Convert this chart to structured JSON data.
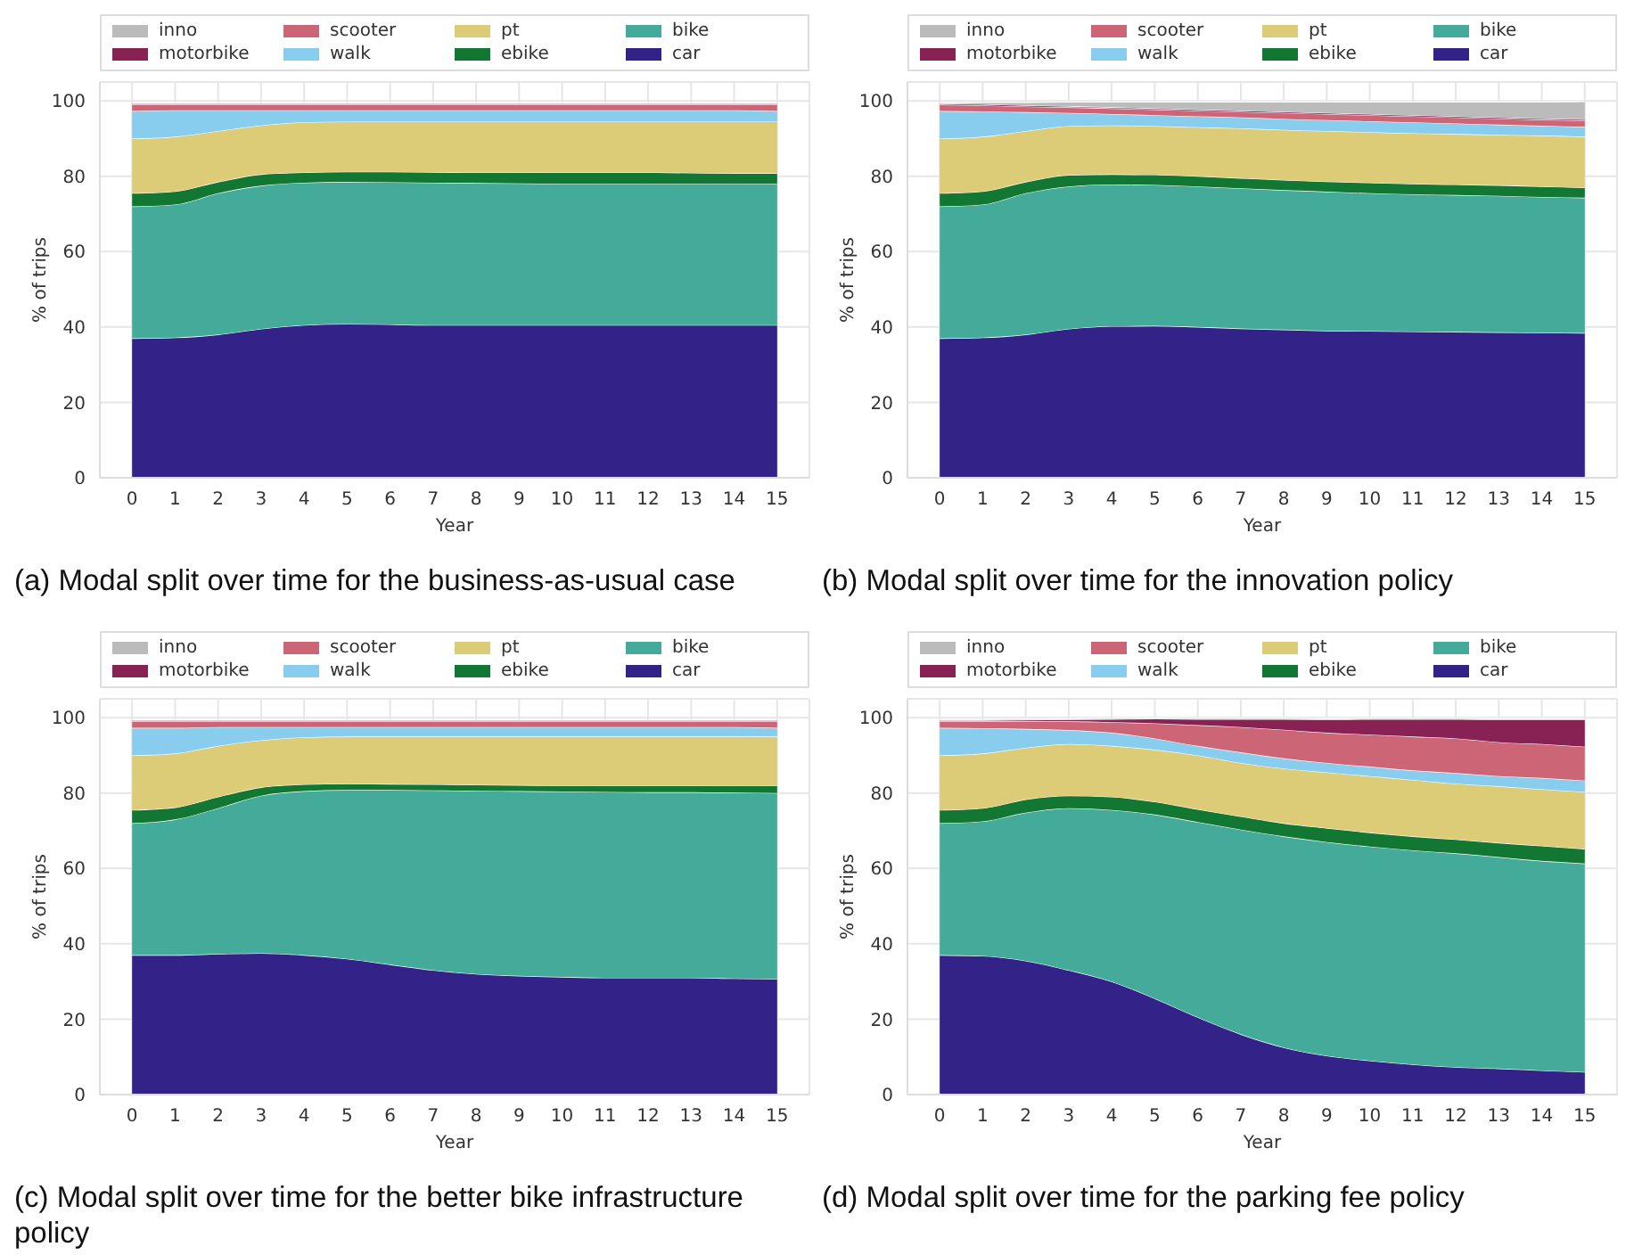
{
  "chart_data": [
    {
      "type": "area",
      "stacked": true,
      "title": "(a) Modal split over time for the business-as-usual case",
      "xlabel": "Year",
      "ylabel": "% of trips",
      "x": [
        0,
        1,
        2,
        3,
        4,
        5,
        6,
        7,
        8,
        9,
        10,
        11,
        12,
        13,
        14,
        15
      ],
      "xlim": [
        -0.75,
        15.75
      ],
      "xticks": [
        0,
        1,
        2,
        3,
        4,
        5,
        6,
        7,
        8,
        9,
        10,
        11,
        12,
        13,
        14,
        15
      ],
      "ylim": [
        0,
        105
      ],
      "yticks": [
        0,
        20,
        40,
        60,
        80,
        100
      ],
      "grid": true,
      "legend": "top",
      "series": [
        {
          "name": "car",
          "color": "#332288",
          "values": [
            37,
            37.2,
            38,
            39.5,
            40.5,
            40.8,
            40.7,
            40.5,
            40.5,
            40.5,
            40.5,
            40.5,
            40.5,
            40.5,
            40.5,
            40.5
          ]
        },
        {
          "name": "bike",
          "color": "#44aa99",
          "values": [
            35,
            35.3,
            37.5,
            38,
            37.8,
            37.7,
            37.7,
            37.8,
            37.7,
            37.6,
            37.5,
            37.5,
            37.5,
            37.5,
            37.5,
            37.5
          ]
        },
        {
          "name": "ebike",
          "color": "#117733",
          "values": [
            3.5,
            3.5,
            3,
            3,
            2.7,
            2.7,
            2.8,
            2.8,
            2.8,
            2.9,
            3,
            3,
            3,
            2.9,
            2.8,
            2.8
          ]
        },
        {
          "name": "pt",
          "color": "#ddcc77",
          "values": [
            14.5,
            14.5,
            13.5,
            13,
            13.3,
            13.3,
            13.3,
            13.4,
            13.5,
            13.5,
            13.5,
            13.5,
            13.5,
            13.6,
            13.7,
            13.7
          ]
        },
        {
          "name": "walk",
          "color": "#88ccee",
          "values": [
            7.3,
            7,
            5.5,
            4,
            3.2,
            3,
            3,
            3,
            3,
            3,
            3,
            3,
            3,
            3,
            3,
            2.8
          ]
        },
        {
          "name": "scooter",
          "color": "#cc6677",
          "values": [
            1.7,
            1.5,
            1.5,
            1.5,
            1.5,
            1.5,
            1.5,
            1.5,
            1.5,
            1.5,
            1.5,
            1.5,
            1.5,
            1.5,
            1.5,
            1.7
          ]
        },
        {
          "name": "motorbike",
          "color": "#882255",
          "values": [
            0.3,
            0.3,
            0.3,
            0.3,
            0.3,
            0.3,
            0.3,
            0.3,
            0.3,
            0.3,
            0.3,
            0.3,
            0.3,
            0.3,
            0.3,
            0.3
          ]
        },
        {
          "name": "inno",
          "color": "#bbbbbb",
          "values": [
            null,
            null,
            null,
            null,
            null,
            null,
            null,
            null,
            null,
            null,
            null,
            null,
            null,
            null,
            null,
            null
          ]
        }
      ]
    },
    {
      "type": "area",
      "stacked": true,
      "title": "(b) Modal split over time for the innovation policy",
      "xlabel": "Year",
      "ylabel": "% of trips",
      "x": [
        0,
        1,
        2,
        3,
        4,
        5,
        6,
        7,
        8,
        9,
        10,
        11,
        12,
        13,
        14,
        15
      ],
      "xlim": [
        -0.75,
        15.75
      ],
      "xticks": [
        0,
        1,
        2,
        3,
        4,
        5,
        6,
        7,
        8,
        9,
        10,
        11,
        12,
        13,
        14,
        15
      ],
      "ylim": [
        0,
        105
      ],
      "yticks": [
        0,
        20,
        40,
        60,
        80,
        100
      ],
      "grid": true,
      "legend": "top",
      "series": [
        {
          "name": "car",
          "color": "#332288",
          "values": [
            37,
            37.2,
            38,
            39.5,
            40.2,
            40.3,
            40,
            39.6,
            39.3,
            39,
            38.9,
            38.8,
            38.7,
            38.6,
            38.5,
            38.4
          ]
        },
        {
          "name": "bike",
          "color": "#44aa99",
          "values": [
            35,
            35.3,
            37.5,
            37.8,
            37.6,
            37.4,
            37.3,
            37.2,
            37,
            36.9,
            36.6,
            36.4,
            36.3,
            36.2,
            36,
            35.9
          ]
        },
        {
          "name": "ebike",
          "color": "#117733",
          "values": [
            3.5,
            3.5,
            3,
            3,
            2.7,
            2.7,
            2.7,
            2.7,
            2.7,
            2.7,
            2.8,
            2.8,
            2.8,
            2.8,
            2.8,
            2.7
          ]
        },
        {
          "name": "pt",
          "color": "#ddcc77",
          "values": [
            14.5,
            14.5,
            13.5,
            13,
            13,
            12.9,
            13,
            13.2,
            13.3,
            13.4,
            13.4,
            13.4,
            13.4,
            13.4,
            13.5,
            13.5
          ]
        },
        {
          "name": "walk",
          "color": "#88ccee",
          "values": [
            7.3,
            6.7,
            5,
            3.5,
            3,
            2.9,
            2.9,
            2.9,
            2.9,
            2.9,
            2.9,
            2.9,
            2.8,
            2.7,
            2.6,
            2.6
          ]
        },
        {
          "name": "scooter",
          "color": "#cc6677",
          "values": [
            1.7,
            1.6,
            1.5,
            1.5,
            1.5,
            1.5,
            1.5,
            1.5,
            1.6,
            1.6,
            1.6,
            1.6,
            1.6,
            1.6,
            1.6,
            1.7
          ]
        },
        {
          "name": "motorbike",
          "color": "#882255",
          "values": [
            0.3,
            0.3,
            0.3,
            0.3,
            0.3,
            0.3,
            0.3,
            0.3,
            0.3,
            0.3,
            0.3,
            0.3,
            0.3,
            0.3,
            0.3,
            0.3
          ]
        },
        {
          "name": "inno",
          "color": "#bbbbbb",
          "values": [
            0.2,
            0.5,
            0.8,
            1.1,
            1.4,
            1.7,
            2,
            2.3,
            2.6,
            2.9,
            3.2,
            3.5,
            3.8,
            4.1,
            4.4,
            4.7
          ]
        }
      ]
    },
    {
      "type": "area",
      "stacked": true,
      "title": "(c) Modal split over time for the better bike infrastructure policy",
      "xlabel": "Year",
      "ylabel": "% of trips",
      "x": [
        0,
        1,
        2,
        3,
        4,
        5,
        6,
        7,
        8,
        9,
        10,
        11,
        12,
        13,
        14,
        15
      ],
      "xlim": [
        -0.75,
        15.75
      ],
      "xticks": [
        0,
        1,
        2,
        3,
        4,
        5,
        6,
        7,
        8,
        9,
        10,
        11,
        12,
        13,
        14,
        15
      ],
      "ylim": [
        0,
        105
      ],
      "yticks": [
        0,
        20,
        40,
        60,
        80,
        100
      ],
      "grid": true,
      "legend": "top",
      "series": [
        {
          "name": "car",
          "color": "#332288",
          "values": [
            37,
            37,
            37.3,
            37.5,
            37,
            36,
            34.5,
            33,
            32,
            31.5,
            31.2,
            31,
            31,
            31,
            30.8,
            30.7
          ]
        },
        {
          "name": "bike",
          "color": "#44aa99",
          "values": [
            35,
            36,
            38.7,
            41.8,
            43.5,
            44.8,
            46.3,
            47.7,
            48.6,
            49,
            49.2,
            49.3,
            49.2,
            49.2,
            49.3,
            49.3
          ]
        },
        {
          "name": "ebike",
          "color": "#117733",
          "values": [
            3.5,
            3.2,
            3,
            2.2,
            1.8,
            1.7,
            1.6,
            1.6,
            1.6,
            1.6,
            1.6,
            1.7,
            1.8,
            1.8,
            1.9,
            2
          ]
        },
        {
          "name": "pt",
          "color": "#ddcc77",
          "values": [
            14.5,
            14.3,
            13.5,
            12.5,
            12.5,
            12.5,
            12.6,
            12.7,
            12.8,
            12.9,
            13,
            13,
            13,
            13,
            13,
            13
          ]
        },
        {
          "name": "walk",
          "color": "#88ccee",
          "values": [
            7.3,
            6.8,
            5,
            3.5,
            2.7,
            2.5,
            2.5,
            2.5,
            2.5,
            2.5,
            2.5,
            2.5,
            2.5,
            2.5,
            2.5,
            2.3
          ]
        },
        {
          "name": "scooter",
          "color": "#cc6677",
          "values": [
            1.7,
            1.7,
            1.5,
            1.5,
            1.5,
            1.5,
            1.5,
            1.5,
            1.5,
            1.5,
            1.5,
            1.5,
            1.5,
            1.5,
            1.5,
            1.7
          ]
        },
        {
          "name": "motorbike",
          "color": "#882255",
          "values": [
            0.3,
            0.3,
            0.3,
            0.3,
            0.3,
            0.3,
            0.3,
            0.3,
            0.3,
            0.3,
            0.3,
            0.3,
            0.3,
            0.3,
            0.3,
            0.3
          ]
        },
        {
          "name": "inno",
          "color": "#bbbbbb",
          "values": [
            null,
            null,
            null,
            null,
            null,
            null,
            null,
            null,
            null,
            null,
            null,
            null,
            null,
            null,
            null,
            null
          ]
        }
      ]
    },
    {
      "type": "area",
      "stacked": true,
      "title": "(d) Modal split over time for the parking fee policy",
      "xlabel": "Year",
      "ylabel": "% of trips",
      "x": [
        0,
        1,
        2,
        3,
        4,
        5,
        6,
        7,
        8,
        9,
        10,
        11,
        12,
        13,
        14,
        15
      ],
      "xlim": [
        -0.75,
        15.75
      ],
      "xticks": [
        0,
        1,
        2,
        3,
        4,
        5,
        6,
        7,
        8,
        9,
        10,
        11,
        12,
        13,
        14,
        15
      ],
      "ylim": [
        0,
        105
      ],
      "yticks": [
        0,
        20,
        40,
        60,
        80,
        100
      ],
      "grid": true,
      "legend": "top",
      "series": [
        {
          "name": "car",
          "color": "#332288",
          "values": [
            37,
            36.8,
            35.5,
            33,
            30,
            25.5,
            20.5,
            16,
            12.5,
            10.3,
            9,
            8,
            7.3,
            6.9,
            6.4,
            6
          ]
        },
        {
          "name": "bike",
          "color": "#44aa99",
          "values": [
            35,
            35.7,
            39.3,
            43,
            45.5,
            48.8,
            51.8,
            54.3,
            56,
            56.7,
            56.8,
            56.8,
            56.7,
            56.1,
            55.6,
            55.3
          ]
        },
        {
          "name": "ebike",
          "color": "#117733",
          "values": [
            3.5,
            3.5,
            3.5,
            3.3,
            3.5,
            3.4,
            3.4,
            3.5,
            3.5,
            3.7,
            3.7,
            3.7,
            3.7,
            3.8,
            4,
            3.9
          ]
        },
        {
          "name": "pt",
          "color": "#ddcc77",
          "values": [
            14.5,
            14.5,
            13.7,
            13.7,
            13.5,
            13.8,
            14.3,
            14.2,
            14.5,
            14.8,
            15,
            15,
            14.8,
            15,
            15,
            15.1
          ]
        },
        {
          "name": "walk",
          "color": "#88ccee",
          "values": [
            7.3,
            6.7,
            5,
            3.7,
            3.5,
            3,
            2.5,
            2.8,
            2.7,
            2.5,
            2.5,
            2.5,
            2.8,
            2.7,
            3,
            3
          ]
        },
        {
          "name": "scooter",
          "color": "#cc6677",
          "values": [
            1.7,
            1.8,
            2,
            2.3,
            2.8,
            4,
            5.5,
            6.7,
            7.6,
            8,
            8.5,
            9,
            9.2,
            9,
            9,
            9
          ]
        },
        {
          "name": "motorbike",
          "color": "#882255",
          "values": [
            0.3,
            0.3,
            0.4,
            0.5,
            0.8,
            1.2,
            1.6,
            2.1,
            2.8,
            3.5,
            4.1,
            4.6,
            5.1,
            6,
            6.5,
            7.2
          ]
        },
        {
          "name": "inno",
          "color": "#bbbbbb",
          "values": [
            0.2,
            0.2,
            0.2,
            0.2,
            0.2,
            0.2,
            0.2,
            0.2,
            0.2,
            0.2,
            0.2,
            0.2,
            0.2,
            0.2,
            0.2,
            0.2
          ]
        }
      ]
    }
  ]
}
